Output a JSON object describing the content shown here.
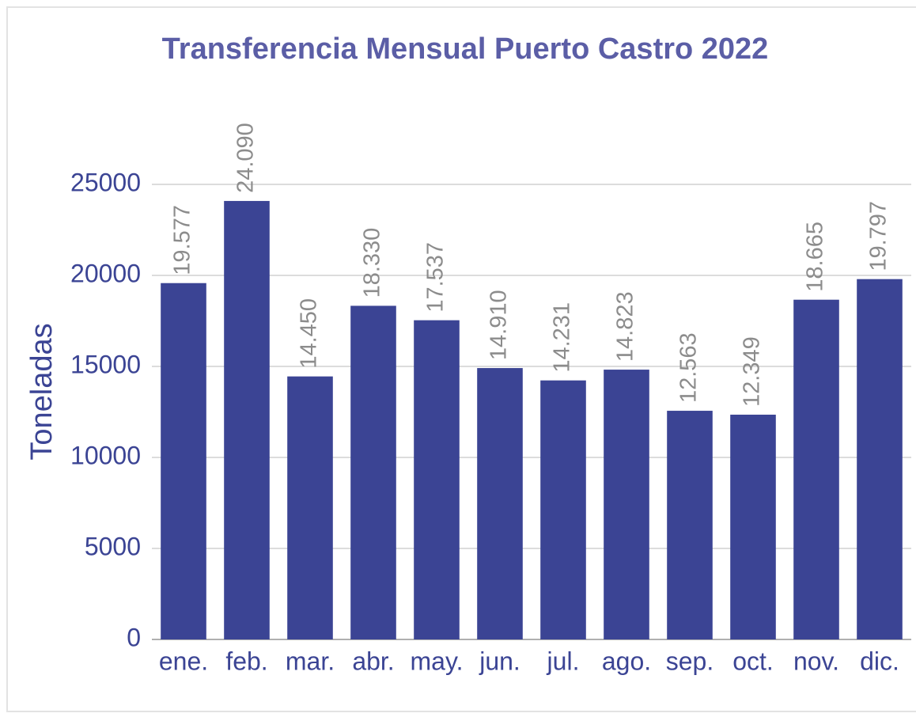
{
  "chart_data": {
    "type": "bar",
    "title": "Transferencia Mensual Puerto Castro 2022",
    "y_label": "Toneladas",
    "categories": [
      "ene.",
      "feb.",
      "mar.",
      "abr.",
      "may.",
      "jun.",
      "jul.",
      "ago.",
      "sep.",
      "oct.",
      "nov.",
      "dic."
    ],
    "values": [
      19577,
      24090,
      14450,
      18330,
      17537,
      14910,
      14231,
      14823,
      12563,
      12349,
      18665,
      19797
    ],
    "value_labels": [
      "19.577",
      "24.090",
      "14.450",
      "18.330",
      "17.537",
      "14.910",
      "14.231",
      "14.823",
      "12.563",
      "12.349",
      "18.665",
      "19.797"
    ],
    "color": "#3b4494",
    "ylim": [
      0,
      25000
    ],
    "yticks": [
      0,
      5000,
      10000,
      15000,
      20000,
      25000
    ],
    "grid": true
  }
}
